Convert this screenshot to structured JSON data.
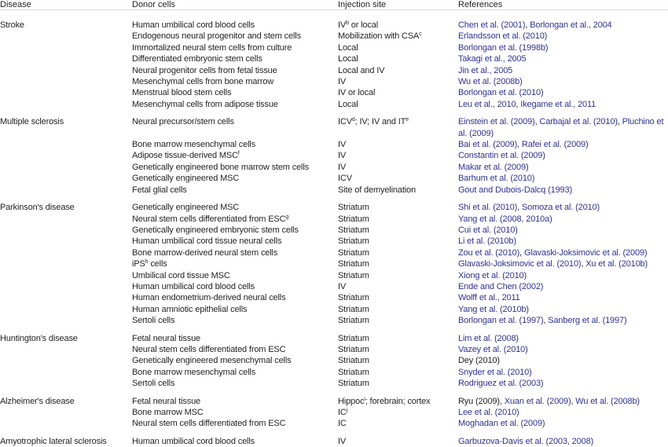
{
  "colors": {
    "link": "#2e3192",
    "text": "#231f20"
  },
  "headers": [
    "Disease",
    "Donor cells",
    "Injection site",
    "References"
  ],
  "groups": [
    {
      "disease": "Stroke",
      "rows": [
        {
          "donor": [
            {
              "t": "Human umbilical cord blood cells"
            }
          ],
          "site": [
            {
              "t": "IV"
            },
            {
              "t": "b",
              "sup": true
            },
            {
              "t": " or local"
            }
          ],
          "refs": [
            {
              "t": "Chen et al. (2001)",
              "link": true
            },
            {
              "t": ", "
            },
            {
              "t": "Borlongan et al., 2004",
              "link": true
            }
          ]
        },
        {
          "donor": [
            {
              "t": "Endogenous neural progenitor and stem cells"
            }
          ],
          "site": [
            {
              "t": "Mobilization with CSA"
            },
            {
              "t": "c",
              "sup": true
            }
          ],
          "refs": [
            {
              "t": "Erlandsson et al. (2010)",
              "link": true
            }
          ]
        },
        {
          "donor": [
            {
              "t": "Immortalized neural stem cells from culture"
            }
          ],
          "site": [
            {
              "t": "Local"
            }
          ],
          "refs": [
            {
              "t": "Borlongan et al. (1998b)",
              "link": true
            }
          ]
        },
        {
          "donor": [
            {
              "t": "Differentiated embryonic stem cells"
            }
          ],
          "site": [
            {
              "t": "Local"
            }
          ],
          "refs": [
            {
              "t": "Takagi et al., 2005",
              "link": true
            }
          ]
        },
        {
          "donor": [
            {
              "t": "Neural progenitor cells from fetal tissue"
            }
          ],
          "site": [
            {
              "t": "Local and IV"
            }
          ],
          "refs": [
            {
              "t": "Jin et al., 2005",
              "link": true
            }
          ]
        },
        {
          "donor": [
            {
              "t": "Mesenchymal cells from bone marrow"
            }
          ],
          "site": [
            {
              "t": "IV"
            }
          ],
          "refs": [
            {
              "t": "Wu et al. (2008b)",
              "link": true
            }
          ]
        },
        {
          "donor": [
            {
              "t": "Menstrual blood stem cells"
            }
          ],
          "site": [
            {
              "t": "IV or local"
            }
          ],
          "refs": [
            {
              "t": "Borlongan et al. (2010)",
              "link": true
            }
          ]
        },
        {
          "donor": [
            {
              "t": "Mesenchymal cells from adipose tissue"
            }
          ],
          "site": [
            {
              "t": "Local"
            }
          ],
          "refs": [
            {
              "t": "Leu et al., 2010",
              "link": true
            },
            {
              "t": ", "
            },
            {
              "t": "Ikegame et al., 2011",
              "link": true
            }
          ]
        }
      ]
    },
    {
      "disease": "Multiple sclerosis",
      "rows": [
        {
          "donor": [
            {
              "t": "Neural precursor/stem cells"
            }
          ],
          "site": [
            {
              "t": "ICV"
            },
            {
              "t": "d",
              "sup": true
            },
            {
              "t": "; IV; IV and IT"
            },
            {
              "t": "e",
              "sup": true
            }
          ],
          "refs": [
            {
              "t": "Einstein et al. (2009)",
              "link": true
            },
            {
              "t": ", "
            },
            {
              "t": "Carbajal et al. (2010)",
              "link": true
            },
            {
              "t": ", "
            },
            {
              "t": "Pluchino et al. (2009)",
              "link": true
            }
          ]
        },
        {
          "donor": [
            {
              "t": "Bone marrow mesenchymal cells"
            }
          ],
          "site": [
            {
              "t": "IV"
            }
          ],
          "refs": [
            {
              "t": "Bai et al. (2009)",
              "link": true
            },
            {
              "t": ", "
            },
            {
              "t": "Rafei et al. (2009)",
              "link": true
            }
          ]
        },
        {
          "donor": [
            {
              "t": "Adipose tissue-derived MSC"
            },
            {
              "t": "f",
              "sup": true
            }
          ],
          "site": [
            {
              "t": "IV"
            }
          ],
          "refs": [
            {
              "t": "Constantin et al. (2009)",
              "link": true
            }
          ]
        },
        {
          "donor": [
            {
              "t": "Genetically engineered bone marrow stem cells"
            }
          ],
          "site": [
            {
              "t": "IV"
            }
          ],
          "refs": [
            {
              "t": "Makar et al. (2009)",
              "link": true
            }
          ]
        },
        {
          "donor": [
            {
              "t": "Genetically engineered MSC"
            }
          ],
          "site": [
            {
              "t": "ICV"
            }
          ],
          "refs": [
            {
              "t": "Barhum et al. (2010)",
              "link": true
            }
          ]
        },
        {
          "donor": [
            {
              "t": "Fetal glial cells"
            }
          ],
          "site": [
            {
              "t": "Site of demyelination"
            }
          ],
          "refs": [
            {
              "t": "Gout and Dubois-Dalcq (1993)",
              "link": true
            }
          ]
        }
      ]
    },
    {
      "disease": "Parkinson's disease",
      "rows": [
        {
          "donor": [
            {
              "t": "Genetically engineered MSC"
            }
          ],
          "site": [
            {
              "t": "Striatum"
            }
          ],
          "refs": [
            {
              "t": "Shi et al. (2010)",
              "link": true
            },
            {
              "t": ", "
            },
            {
              "t": "Somoza et al. (2010)",
              "link": true
            }
          ]
        },
        {
          "donor": [
            {
              "t": "Neural stem cells differentiated from ESC"
            },
            {
              "t": "g",
              "sup": true
            }
          ],
          "site": [
            {
              "t": "Striatum"
            }
          ],
          "refs": [
            {
              "t": "Yang et al. (2008, 2010a)",
              "link": true
            }
          ]
        },
        {
          "donor": [
            {
              "t": "Genetically engineered embryonic stem cells"
            }
          ],
          "site": [
            {
              "t": "Striatum"
            }
          ],
          "refs": [
            {
              "t": "Cui et al. (2010)",
              "link": true
            }
          ]
        },
        {
          "donor": [
            {
              "t": "Human umbilical cord tissue neural cells"
            }
          ],
          "site": [
            {
              "t": "Striatum"
            }
          ],
          "refs": [
            {
              "t": "Li et al. (2010b)",
              "link": true
            }
          ]
        },
        {
          "donor": [
            {
              "t": "Bone marrow-derived neural stem cells"
            }
          ],
          "site": [
            {
              "t": "Striatum"
            }
          ],
          "refs": [
            {
              "t": "Zou et al. (2010)",
              "link": true
            },
            {
              "t": ", "
            },
            {
              "t": "Glavaski-Joksimovic et al. (2009)",
              "link": true
            }
          ]
        },
        {
          "donor": [
            {
              "t": "iPS"
            },
            {
              "t": "h",
              "sup": true
            },
            {
              "t": " cells"
            }
          ],
          "site": [
            {
              "t": "Striatum"
            }
          ],
          "refs": [
            {
              "t": "Glavaski-Joksimovic et al. (2010)",
              "link": true
            },
            {
              "t": ", "
            },
            {
              "t": "Xu et al. (2010b)",
              "link": true
            }
          ]
        },
        {
          "donor": [
            {
              "t": "Umbilical cord tissue MSC"
            }
          ],
          "site": [
            {
              "t": "Striatum"
            }
          ],
          "refs": [
            {
              "t": "Xiong et al. (2010)",
              "link": true
            }
          ]
        },
        {
          "donor": [
            {
              "t": "Human umbilical cord blood cells"
            }
          ],
          "site": [
            {
              "t": "IV"
            }
          ],
          "refs": [
            {
              "t": "Ende and Chen (2002)",
              "link": true
            }
          ]
        },
        {
          "donor": [
            {
              "t": "Human endometrium-derived neural cells"
            }
          ],
          "site": [
            {
              "t": "Striatum"
            }
          ],
          "refs": [
            {
              "t": "Wolff et al., 2011",
              "link": true
            }
          ]
        },
        {
          "donor": [
            {
              "t": "Human amniotic epithelial cells"
            }
          ],
          "site": [
            {
              "t": "Striatum"
            }
          ],
          "refs": [
            {
              "t": "Yang et al. (2010b)",
              "link": true
            }
          ]
        },
        {
          "donor": [
            {
              "t": "Sertoli cells"
            }
          ],
          "site": [
            {
              "t": "Striatum"
            }
          ],
          "refs": [
            {
              "t": "Borlongan et al. (1997)",
              "link": true
            },
            {
              "t": ", "
            },
            {
              "t": "Sanberg et al. (1997)",
              "link": true
            }
          ]
        }
      ]
    },
    {
      "disease": "Huntington's disease",
      "rows": [
        {
          "donor": [
            {
              "t": "Fetal neural tissue"
            }
          ],
          "site": [
            {
              "t": "Striatum"
            }
          ],
          "refs": [
            {
              "t": "Lim et al. (2008)",
              "link": true
            }
          ]
        },
        {
          "donor": [
            {
              "t": "Neural stem cells differentiated from ESC"
            }
          ],
          "site": [
            {
              "t": "Striatum"
            }
          ],
          "refs": [
            {
              "t": "Vazey et al. (2010)",
              "link": true
            }
          ]
        },
        {
          "donor": [
            {
              "t": "Genetically engineered mesenchymal cells"
            }
          ],
          "site": [
            {
              "t": "Striatum"
            }
          ],
          "refs": [
            {
              "t": "Dey (2010)"
            }
          ]
        },
        {
          "donor": [
            {
              "t": "Bone marrow mesenchymal cells"
            }
          ],
          "site": [
            {
              "t": "Striatum"
            }
          ],
          "refs": [
            {
              "t": "Snyder et al. (2010)",
              "link": true
            }
          ]
        },
        {
          "donor": [
            {
              "t": "Sertoli cells"
            }
          ],
          "site": [
            {
              "t": "Striatum"
            }
          ],
          "refs": [
            {
              "t": "Rodriguez et al. (2003)",
              "link": true
            }
          ]
        }
      ]
    },
    {
      "disease": "Alzheimer's disease",
      "rows": [
        {
          "donor": [
            {
              "t": "Fetal neural tissue"
            }
          ],
          "site": [
            {
              "t": "Hippoc"
            },
            {
              "t": "i",
              "sup": true
            },
            {
              "t": "; forebrain; cortex"
            }
          ],
          "refs": [
            {
              "t": "Ryu (2009), "
            },
            {
              "t": "Xuan et al. (2009)",
              "link": true
            },
            {
              "t": ", "
            },
            {
              "t": "Wu et al. (2008b)",
              "link": true
            }
          ]
        },
        {
          "donor": [
            {
              "t": "Bone marrow MSC"
            }
          ],
          "site": [
            {
              "t": "IC"
            },
            {
              "t": "j",
              "sup": true
            }
          ],
          "refs": [
            {
              "t": "Lee et al. (2010)",
              "link": true
            }
          ]
        },
        {
          "donor": [
            {
              "t": "Neural stem cells differentiated from ESC"
            }
          ],
          "site": [
            {
              "t": "IC"
            }
          ],
          "refs": [
            {
              "t": "Moghadan et al. (2009)",
              "link": true
            }
          ]
        }
      ]
    },
    {
      "disease": "Amyotrophic lateral sclerosis",
      "rows": [
        {
          "donor": [
            {
              "t": "Human umbilical cord blood cells"
            }
          ],
          "site": [
            {
              "t": "IV"
            }
          ],
          "refs": [
            {
              "t": "Garbuzova-Davis et al. (2003, 2008)",
              "link": true
            }
          ]
        }
      ]
    }
  ]
}
